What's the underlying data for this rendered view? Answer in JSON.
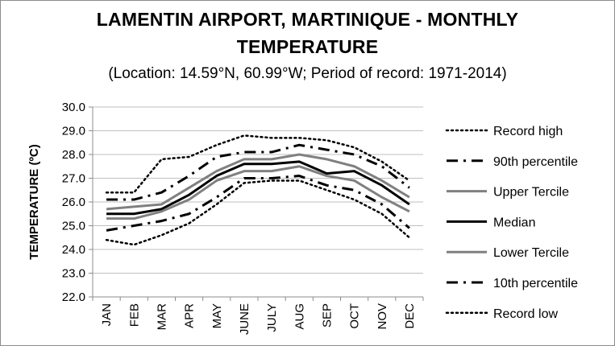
{
  "chart_data": {
    "type": "line",
    "title_line1": "LAMENTIN AIRPORT, MARTINIQUE - MONTHLY",
    "title_line2": "TEMPERATURE",
    "subtitle": "(Location: 14.59°N, 60.99°W; Period of record: 1971-2014)",
    "ylabel": "TEMPERATURE (ºC)",
    "xlabel": "",
    "ylim": [
      22.0,
      30.0
    ],
    "yticks": [
      "22.0",
      "23.0",
      "24.0",
      "25.0",
      "26.0",
      "27.0",
      "28.0",
      "29.0",
      "30.0"
    ],
    "grid": "horizontal",
    "legend_position": "right",
    "categories": [
      "JAN",
      "FEB",
      "MAR",
      "APR",
      "MAY",
      "JUNE",
      "JULY",
      "AUG",
      "SEP",
      "OCT",
      "NOV",
      "DEC"
    ],
    "series": [
      {
        "name": "Record high",
        "style": "dotted",
        "color": "#000000",
        "values": [
          26.4,
          26.4,
          27.8,
          27.9,
          28.4,
          28.8,
          28.7,
          28.7,
          28.6,
          28.3,
          27.7,
          26.9
        ]
      },
      {
        "name": "90th percentile",
        "style": "dashdot",
        "color": "#000000",
        "values": [
          26.1,
          26.1,
          26.4,
          27.1,
          27.9,
          28.1,
          28.1,
          28.4,
          28.2,
          28.0,
          27.5,
          26.6
        ]
      },
      {
        "name": "Upper Tercile",
        "style": "solid",
        "color": "#808080",
        "values": [
          25.7,
          25.8,
          25.9,
          26.6,
          27.3,
          27.8,
          27.8,
          28.0,
          27.8,
          27.5,
          26.9,
          26.2
        ]
      },
      {
        "name": "Median",
        "style": "solid",
        "color": "#000000",
        "values": [
          25.5,
          25.5,
          25.7,
          26.3,
          27.1,
          27.6,
          27.6,
          27.7,
          27.2,
          27.3,
          26.7,
          25.9
        ]
      },
      {
        "name": "Lower Tercile",
        "style": "solid",
        "color": "#808080",
        "values": [
          25.3,
          25.3,
          25.6,
          26.1,
          26.9,
          27.3,
          27.3,
          27.5,
          27.1,
          26.9,
          26.2,
          25.6
        ]
      },
      {
        "name": "10th percentile",
        "style": "dashdot",
        "color": "#000000",
        "values": [
          24.8,
          25.0,
          25.2,
          25.5,
          26.2,
          27.0,
          27.0,
          27.1,
          26.7,
          26.5,
          25.9,
          24.9
        ]
      },
      {
        "name": "Record low",
        "style": "dotted",
        "color": "#000000",
        "values": [
          24.4,
          24.2,
          24.6,
          25.1,
          25.9,
          26.8,
          26.9,
          26.9,
          26.5,
          26.1,
          25.5,
          24.5
        ]
      }
    ]
  }
}
